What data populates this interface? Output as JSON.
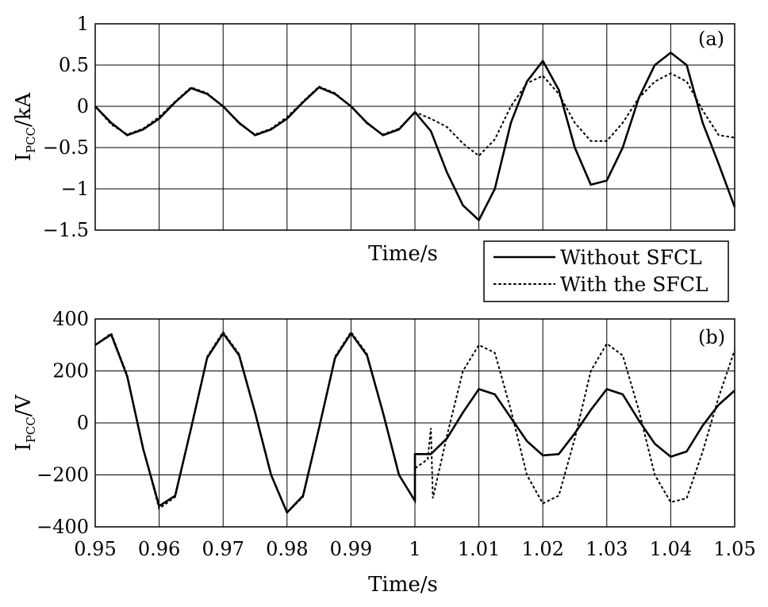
{
  "chart_data": [
    {
      "panel": "(a)",
      "type": "line",
      "ylabel_main": "I",
      "ylabel_sub": "PCC",
      "ylabel_unit": "/kA",
      "xlabel": "Time/s",
      "xlim": [
        0.95,
        1.05
      ],
      "ylim": [
        -1.5,
        1
      ],
      "xgrid": [
        0.96,
        0.97,
        0.98,
        0.99,
        1.0,
        1.01,
        1.02,
        1.03,
        1.04
      ],
      "yticks": [
        {
          "v": 1,
          "label": "1"
        },
        {
          "v": 0.5,
          "label": "0.5"
        },
        {
          "v": 0,
          "label": "0"
        },
        {
          "v": -0.5,
          "label": "−0.5"
        },
        {
          "v": -1,
          "label": "−1"
        },
        {
          "v": -1.5,
          "label": "−1.5"
        }
      ],
      "legend": [
        "Without SFCL",
        "With the SFCL"
      ],
      "series": [
        {
          "name": "Without SFCL",
          "style": "solid",
          "x": [
            0.95,
            0.9525,
            0.955,
            0.9575,
            0.96,
            0.9625,
            0.965,
            0.9675,
            0.97,
            0.9725,
            0.975,
            0.9775,
            0.98,
            0.9825,
            0.985,
            0.9875,
            0.99,
            0.9925,
            0.995,
            0.9975,
            1.0,
            1.0025,
            1.005,
            1.0075,
            1.01,
            1.0125,
            1.015,
            1.0175,
            1.02,
            1.0225,
            1.025,
            1.0275,
            1.03,
            1.0325,
            1.035,
            1.0375,
            1.04,
            1.0425,
            1.045,
            1.0475,
            1.05
          ],
          "y": [
            0,
            -0.2,
            -0.35,
            -0.28,
            -0.15,
            0.05,
            0.22,
            0.15,
            0,
            -0.2,
            -0.35,
            -0.28,
            -0.15,
            0.05,
            0.23,
            0.15,
            0,
            -0.2,
            -0.35,
            -0.28,
            -0.07,
            -0.3,
            -0.8,
            -1.2,
            -1.38,
            -1.0,
            -0.2,
            0.3,
            0.55,
            0.2,
            -0.5,
            -0.95,
            -0.9,
            -0.5,
            0.1,
            0.5,
            0.65,
            0.5,
            -0.2,
            -0.7,
            -1.22
          ]
        },
        {
          "name": "With the SFCL",
          "style": "dotted",
          "x": [
            0.95,
            0.9525,
            0.955,
            0.9575,
            0.96,
            0.9625,
            0.965,
            0.9675,
            0.97,
            0.9725,
            0.975,
            0.9775,
            0.98,
            0.9825,
            0.985,
            0.9875,
            0.99,
            0.9925,
            0.995,
            0.9975,
            1.0,
            1.0025,
            1.005,
            1.0075,
            1.01,
            1.0125,
            1.015,
            1.0175,
            1.02,
            1.0225,
            1.025,
            1.0275,
            1.03,
            1.0325,
            1.035,
            1.0375,
            1.04,
            1.0425,
            1.045,
            1.0475,
            1.05
          ],
          "y": [
            0,
            -0.22,
            -0.34,
            -0.27,
            -0.13,
            0.06,
            0.23,
            0.16,
            0,
            -0.21,
            -0.34,
            -0.27,
            -0.13,
            0.06,
            0.24,
            0.16,
            0,
            -0.21,
            -0.34,
            -0.27,
            -0.07,
            -0.15,
            -0.25,
            -0.45,
            -0.6,
            -0.4,
            0,
            0.28,
            0.37,
            0.15,
            -0.2,
            -0.42,
            -0.42,
            -0.2,
            0.1,
            0.3,
            0.4,
            0.3,
            -0.05,
            -0.35,
            -0.38
          ]
        }
      ]
    },
    {
      "panel": "(b)",
      "type": "line",
      "ylabel_main": "I",
      "ylabel_sub": "PCC",
      "ylabel_unit": "/V",
      "xlabel": "Time/s",
      "xlim": [
        0.95,
        1.05
      ],
      "ylim": [
        -400,
        400
      ],
      "xgrid": [
        0.96,
        0.97,
        0.98,
        0.99,
        1.0,
        1.01,
        1.02,
        1.03,
        1.04
      ],
      "xticks": [
        {
          "v": 0.95,
          "label": "0.95"
        },
        {
          "v": 0.96,
          "label": "0.96"
        },
        {
          "v": 0.97,
          "label": "0.97"
        },
        {
          "v": 0.98,
          "label": "0.98"
        },
        {
          "v": 0.99,
          "label": "0.99"
        },
        {
          "v": 1.0,
          "label": "1"
        },
        {
          "v": 1.01,
          "label": "1.01"
        },
        {
          "v": 1.02,
          "label": "1.02"
        },
        {
          "v": 1.03,
          "label": "1.03"
        },
        {
          "v": 1.04,
          "label": "1.04"
        },
        {
          "v": 1.05,
          "label": "1.05"
        }
      ],
      "yticks": [
        {
          "v": 400,
          "label": "400"
        },
        {
          "v": 200,
          "label": "200"
        },
        {
          "v": 0,
          "label": "0"
        },
        {
          "v": -200,
          "label": "−200"
        },
        {
          "v": -400,
          "label": "−400"
        }
      ],
      "series": [
        {
          "name": "Without SFCL",
          "style": "solid",
          "x": [
            0.95,
            0.9525,
            0.955,
            0.9575,
            0.96,
            0.9625,
            0.965,
            0.9675,
            0.97,
            0.9725,
            0.975,
            0.9775,
            0.98,
            0.9825,
            0.985,
            0.9875,
            0.99,
            0.9925,
            0.995,
            0.9975,
            1.0,
            1.0,
            1.0025,
            1.005,
            1.0075,
            1.01,
            1.0125,
            1.015,
            1.0175,
            1.02,
            1.0225,
            1.025,
            1.0275,
            1.03,
            1.0325,
            1.035,
            1.0375,
            1.04,
            1.0425,
            1.045,
            1.0475,
            1.05
          ],
          "y": [
            300,
            340,
            180,
            -100,
            -320,
            -280,
            -20,
            250,
            345,
            260,
            40,
            -200,
            -345,
            -280,
            -20,
            250,
            345,
            260,
            40,
            -200,
            -300,
            -120,
            -120,
            -60,
            40,
            130,
            110,
            20,
            -70,
            -125,
            -120,
            -40,
            50,
            130,
            110,
            10,
            -80,
            -130,
            -110,
            -10,
            70,
            125
          ]
        },
        {
          "name": "With the SFCL",
          "style": "dotted",
          "x": [
            0.95,
            0.9525,
            0.955,
            0.9575,
            0.96,
            0.9625,
            0.965,
            0.9675,
            0.97,
            0.9725,
            0.975,
            0.9775,
            0.98,
            0.9825,
            0.985,
            0.9875,
            0.99,
            0.9925,
            0.995,
            0.9975,
            1.0,
            1.0,
            1.002,
            1.0025,
            1.0028,
            1.005,
            1.0075,
            1.01,
            1.0125,
            1.015,
            1.0175,
            1.02,
            1.0225,
            1.025,
            1.0275,
            1.03,
            1.0325,
            1.035,
            1.0375,
            1.04,
            1.0425,
            1.045,
            1.0475,
            1.05
          ],
          "y": [
            300,
            345,
            185,
            -100,
            -330,
            -285,
            -20,
            255,
            350,
            265,
            40,
            -200,
            -345,
            -285,
            -20,
            255,
            350,
            265,
            40,
            -200,
            -300,
            -175,
            -140,
            -20,
            -290,
            -50,
            200,
            300,
            270,
            50,
            -200,
            -310,
            -280,
            -60,
            200,
            305,
            260,
            50,
            -200,
            -305,
            -290,
            -110,
            100,
            280
          ]
        }
      ]
    }
  ]
}
